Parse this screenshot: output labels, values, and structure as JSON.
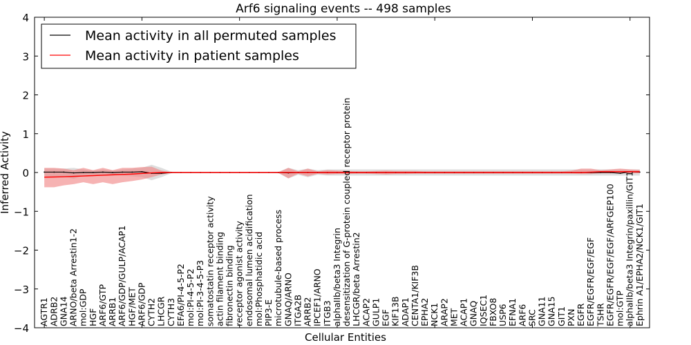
{
  "chart_data": {
    "type": "line",
    "title": "Arf6 signaling events -- 498 samples",
    "xlabel": "Cellular Entities",
    "ylabel": "Inferred Activity",
    "ylim": [
      -4,
      4
    ],
    "xlim": [
      -1,
      62
    ],
    "yticks": [
      -4,
      -3,
      -2,
      -1,
      0,
      1,
      2,
      3,
      4
    ],
    "legend_placement": "top-left",
    "categories": [
      "AGTR1",
      "ADRB2",
      "GNA14",
      "ARNO/beta Arrestin1-2",
      "mol:GDP",
      "HGF",
      "ARF6/GTP",
      "ARRB1",
      "ARF6/GDP/GULP/ACAP1",
      "HGF/MET",
      "ARF6/GDP",
      "CYTH2",
      "LHCGR",
      "CYTH3",
      "EFA6/PI-4-5-P2",
      "mol:PI-4-5-P2",
      "mol:PI-3-4-5-P3",
      "somatostatin receptor activity",
      "actin filament binding",
      "fibronectin binding",
      "receptor agonist activity",
      "endosomal lumen acidification",
      "mol:Phosphatidic acid",
      "PIP3-E",
      "microtubule-based process",
      "GNAQ/ARNO",
      "ITGA2B",
      "ARRB2",
      "IPCEF1/ARNO",
      "ITGB3",
      "alphaIIb/beta3 Integrin",
      "desensitization of G-protein coupled receptor protein",
      "LHCGR/beta Arrestin2",
      "ACAP2",
      "GULP1",
      "EGF",
      "KIF13B",
      "ADAP1",
      "CENTA1/KIF3B",
      "EPHA2",
      "NCK1",
      "ARAP2",
      "MET",
      "ACAP1",
      "GNAQ",
      "IQSEC1",
      "FBXO8",
      "USP6",
      "EFNA1",
      "ARF6",
      "SRC",
      "GNA11",
      "GNA15",
      "GIT1",
      "PXN",
      "EGFR",
      "EGFR/EGFR/EGF/EGF",
      "TSHR",
      "EGFR/EGFR/EGF/EGF/ARFGEP100",
      "mol:GTP",
      "alphaIIb/beta3 Integrin/paxillin/GIT1",
      "Ephrin A1/EPHA2/NCK1/GIT1"
    ],
    "series": [
      {
        "name": "Mean activity in all permuted samples",
        "color": "#000000",
        "band_color": "#c8c8c8",
        "values": [
          0.01,
          0.01,
          0.01,
          -0.01,
          0,
          0,
          0.01,
          0,
          0.01,
          0.01,
          0.02,
          -0.02,
          -0.02,
          0,
          0,
          0,
          0,
          0,
          0,
          0,
          0,
          0,
          0,
          0,
          0,
          -0.01,
          0,
          0,
          0,
          0,
          0,
          0,
          0,
          0,
          0,
          0,
          0,
          0,
          0,
          0,
          0,
          0,
          0,
          0,
          0,
          0,
          0,
          0,
          0,
          0,
          0,
          0,
          0,
          0,
          0,
          0,
          0,
          0,
          0,
          -0.02,
          0.02,
          0.01
        ],
        "upper": [
          0.1,
          0.1,
          0.1,
          0.12,
          0.08,
          0.05,
          0.08,
          0.05,
          0.08,
          0.1,
          0.12,
          0.2,
          0.12,
          0.02,
          0.01,
          0.01,
          0.01,
          0.01,
          0.01,
          0.01,
          0.01,
          0.01,
          0.01,
          0.01,
          0.02,
          0.12,
          0.06,
          0.1,
          0.06,
          0.08,
          0.08,
          0.08,
          0.08,
          0.08,
          0.08,
          0.08,
          0.08,
          0.08,
          0.08,
          0.08,
          0.08,
          0.08,
          0.08,
          0.08,
          0.08,
          0.08,
          0.08,
          0.08,
          0.08,
          0.08,
          0.08,
          0.08,
          0.08,
          0.08,
          0.08,
          0.08,
          0.08,
          0.08,
          0.08,
          0.08,
          0.08,
          0.08
        ],
        "lower": [
          -0.1,
          -0.1,
          -0.1,
          -0.16,
          -0.08,
          -0.05,
          -0.08,
          -0.05,
          -0.08,
          -0.1,
          -0.12,
          -0.2,
          -0.12,
          -0.02,
          -0.01,
          -0.01,
          -0.01,
          -0.01,
          -0.01,
          -0.01,
          -0.01,
          -0.01,
          -0.01,
          -0.01,
          -0.02,
          -0.15,
          -0.06,
          -0.12,
          -0.06,
          -0.08,
          -0.08,
          -0.08,
          -0.08,
          -0.08,
          -0.08,
          -0.08,
          -0.08,
          -0.08,
          -0.08,
          -0.08,
          -0.08,
          -0.08,
          -0.08,
          -0.08,
          -0.08,
          -0.08,
          -0.08,
          -0.08,
          -0.08,
          -0.08,
          -0.08,
          -0.08,
          -0.08,
          -0.08,
          -0.08,
          -0.08,
          -0.08,
          -0.08,
          -0.08,
          -0.08,
          -0.08,
          -0.08
        ]
      },
      {
        "name": "Mean activity in patient samples",
        "color": "#ff0000",
        "band_color": "#f08080",
        "values": [
          -0.12,
          -0.115,
          -0.11,
          -0.1,
          -0.09,
          -0.08,
          -0.07,
          -0.06,
          -0.05,
          -0.04,
          -0.025,
          -0.01,
          0,
          0,
          0,
          0,
          0,
          0,
          0,
          0,
          0,
          0,
          0,
          0,
          0,
          0,
          0,
          0,
          0,
          0,
          0,
          0,
          0,
          0,
          0,
          0,
          0,
          0,
          0,
          0,
          0,
          0,
          0,
          0,
          0,
          0,
          0,
          0,
          0,
          0,
          0,
          0,
          0,
          0,
          0,
          0,
          0.01,
          0.02,
          0.02,
          0.02,
          0.02,
          0.02
        ],
        "upper": [
          0.12,
          0.12,
          0.1,
          0.06,
          0.12,
          0.06,
          0.12,
          0.06,
          0.12,
          0.12,
          0.14,
          0.15,
          0.05,
          0.01,
          0,
          0,
          0,
          0,
          0,
          0,
          0,
          0,
          0,
          0,
          0.01,
          0.12,
          0.03,
          0.1,
          0.03,
          0.06,
          0.05,
          0.04,
          0.03,
          0.03,
          0.04,
          0.05,
          0.04,
          0.04,
          0.04,
          0.03,
          0.03,
          0.03,
          0.03,
          0.03,
          0.03,
          0.03,
          0.03,
          0.03,
          0.03,
          0.03,
          0.03,
          0.03,
          0.03,
          0.03,
          0.05,
          0.1,
          0.1,
          0.06,
          0.08,
          0.1,
          0.08,
          0.07
        ],
        "lower": [
          -0.38,
          -0.38,
          -0.33,
          -0.3,
          -0.25,
          -0.3,
          -0.25,
          -0.3,
          -0.25,
          -0.22,
          -0.18,
          -0.12,
          -0.05,
          -0.01,
          0,
          0,
          0,
          0,
          0,
          0,
          0,
          0,
          0,
          0,
          -0.01,
          -0.15,
          -0.03,
          -0.1,
          -0.03,
          -0.05,
          -0.04,
          -0.04,
          -0.03,
          -0.03,
          -0.04,
          -0.05,
          -0.04,
          -0.04,
          -0.03,
          -0.03,
          -0.03,
          -0.03,
          -0.03,
          -0.03,
          -0.03,
          -0.03,
          -0.03,
          -0.03,
          -0.03,
          -0.03,
          -0.03,
          -0.03,
          -0.03,
          -0.03,
          -0.03,
          -0.04,
          -0.04,
          -0.02,
          -0.02,
          -0.01,
          -0.02,
          -0.02
        ]
      }
    ]
  }
}
